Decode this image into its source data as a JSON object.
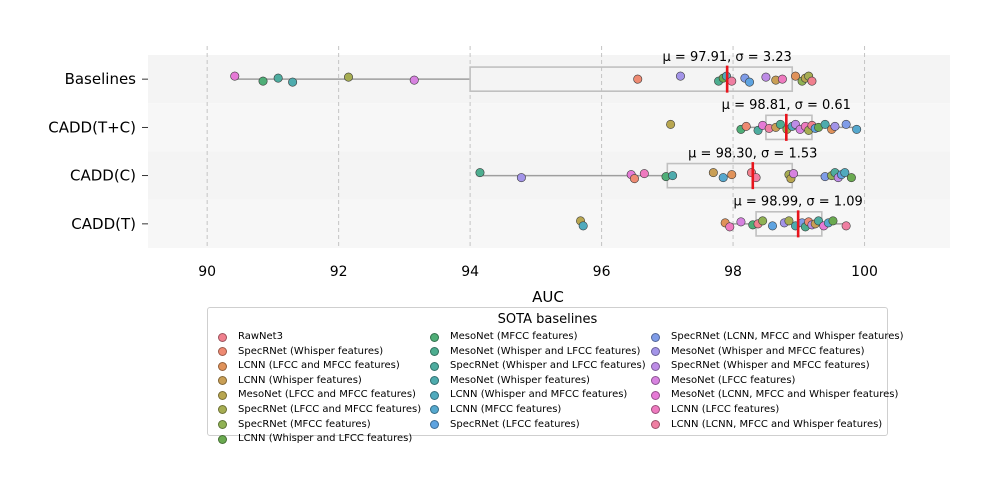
{
  "chart_data": {
    "type": "box-strip",
    "orientation": "horizontal",
    "xlabel": "AUC",
    "xlim": [
      89.1,
      101.3
    ],
    "xticks": [
      90,
      92,
      94,
      96,
      98,
      100
    ],
    "grid_x": true,
    "categories": [
      "Baselines",
      "CADD(T+C)",
      "CADD(C)",
      "CADD(T)"
    ],
    "annotations": [
      "μ = 97.91, σ = 3.23",
      "μ = 98.81, σ = 0.61",
      "μ = 98.30, σ = 1.53",
      "μ = 98.99, σ = 1.09"
    ],
    "means": [
      97.91,
      98.81,
      98.3,
      98.99
    ],
    "boxes": [
      {
        "min": 90.4,
        "q1": 94.0,
        "median": 97.91,
        "q3": 98.9,
        "max": 99.2
      },
      {
        "min": 98.1,
        "q1": 98.5,
        "median": 98.81,
        "q3": 99.2,
        "max": 99.9
      },
      {
        "min": 94.1,
        "q1": 97.0,
        "median": 98.3,
        "q3": 98.9,
        "max": 99.8
      },
      {
        "min": 97.85,
        "q1": 98.35,
        "median": 98.99,
        "q3": 99.35,
        "max": 99.75
      }
    ],
    "legend_title": "SOTA baselines",
    "legend": [
      "RawNet3",
      "SpecRNet (Whisper features)",
      "LCNN (LFCC and MFCC features)",
      "LCNN (Whisper features)",
      "MesoNet (LFCC and MFCC features)",
      "SpecRNet (LFCC and MFCC features)",
      "SpecRNet (MFCC features)",
      "LCNN (Whisper and LFCC features)",
      "MesoNet (MFCC features)",
      "MesoNet (Whisper and LFCC features)",
      "SpecRNet (Whisper and LFCC features)",
      "MesoNet (Whisper features)",
      "LCNN (Whisper and MFCC features)",
      "LCNN (MFCC features)",
      "SpecRNet (LFCC features)",
      "SpecRNet (LCNN, MFCC and Whisper features)",
      "MesoNet (Whisper and MFCC features)",
      "SpecRNet (Whisper and MFCC features)",
      "MesoNet (LFCC features)",
      "MesoNet (LCNN, MFCC and Whisper features)",
      "LCNN (LFCC features)",
      "LCNN (LCNN, MFCC and Whisper features)"
    ],
    "legend_colors": [
      "#f0808e",
      "#ee8a72",
      "#e0925a",
      "#c99f55",
      "#b8a650",
      "#a6ad52",
      "#90b254",
      "#6aaa50",
      "#4fae77",
      "#4dad8f",
      "#4dac9f",
      "#4eabad",
      "#50aabd",
      "#55a8ce",
      "#5ea3e0",
      "#7f9ce8",
      "#a394e8",
      "#bd8ce6",
      "#d782e0",
      "#e67ad6",
      "#ee7abf",
      "#ef7fa2"
    ],
    "points": [
      [
        {
          "x": 90.42,
          "s": 19
        },
        {
          "x": 90.85,
          "s": 8
        },
        {
          "x": 91.08,
          "s": 10
        },
        {
          "x": 91.3,
          "s": 11
        },
        {
          "x": 92.15,
          "s": 5
        },
        {
          "x": 93.15,
          "s": 18
        },
        {
          "x": 96.55,
          "s": 1
        },
        {
          "x": 97.2,
          "s": 16
        },
        {
          "x": 97.78,
          "s": 9
        },
        {
          "x": 97.85,
          "s": 7
        },
        {
          "x": 97.9,
          "s": 12
        },
        {
          "x": 97.98,
          "s": 21
        },
        {
          "x": 98.18,
          "s": 15
        },
        {
          "x": 98.25,
          "s": 14
        },
        {
          "x": 98.5,
          "s": 17
        },
        {
          "x": 98.65,
          "s": 3
        },
        {
          "x": 98.75,
          "s": 20
        },
        {
          "x": 98.95,
          "s": 2
        },
        {
          "x": 99.05,
          "s": 6
        },
        {
          "x": 99.1,
          "s": 4
        },
        {
          "x": 99.15,
          "s": 5
        },
        {
          "x": 99.2,
          "s": 0
        }
      ],
      [
        {
          "x": 97.05,
          "s": 4
        },
        {
          "x": 98.12,
          "s": 8
        },
        {
          "x": 98.2,
          "s": 1
        },
        {
          "x": 98.38,
          "s": 10
        },
        {
          "x": 98.45,
          "s": 19
        },
        {
          "x": 98.55,
          "s": 21
        },
        {
          "x": 98.65,
          "s": 3
        },
        {
          "x": 98.72,
          "s": 9
        },
        {
          "x": 98.82,
          "s": 6
        },
        {
          "x": 98.9,
          "s": 12
        },
        {
          "x": 98.95,
          "s": 17
        },
        {
          "x": 99.02,
          "s": 18
        },
        {
          "x": 99.1,
          "s": 20
        },
        {
          "x": 99.15,
          "s": 5
        },
        {
          "x": 99.2,
          "s": 0
        },
        {
          "x": 99.25,
          "s": 14
        },
        {
          "x": 99.3,
          "s": 7
        },
        {
          "x": 99.4,
          "s": 11
        },
        {
          "x": 99.5,
          "s": 2
        },
        {
          "x": 99.55,
          "s": 16
        },
        {
          "x": 99.72,
          "s": 15
        },
        {
          "x": 99.88,
          "s": 13
        }
      ],
      [
        {
          "x": 94.15,
          "s": 9
        },
        {
          "x": 94.78,
          "s": 16
        },
        {
          "x": 96.45,
          "s": 19
        },
        {
          "x": 96.5,
          "s": 1
        },
        {
          "x": 96.65,
          "s": 20
        },
        {
          "x": 96.98,
          "s": 8
        },
        {
          "x": 97.08,
          "s": 11
        },
        {
          "x": 97.7,
          "s": 3
        },
        {
          "x": 97.85,
          "s": 13
        },
        {
          "x": 97.98,
          "s": 2
        },
        {
          "x": 98.28,
          "s": 0
        },
        {
          "x": 98.35,
          "s": 21
        },
        {
          "x": 98.85,
          "s": 5
        },
        {
          "x": 98.88,
          "s": 4
        },
        {
          "x": 98.92,
          "s": 18
        },
        {
          "x": 99.4,
          "s": 15
        },
        {
          "x": 99.5,
          "s": 6
        },
        {
          "x": 99.55,
          "s": 10
        },
        {
          "x": 99.6,
          "s": 17
        },
        {
          "x": 99.65,
          "s": 14
        },
        {
          "x": 99.7,
          "s": 12
        },
        {
          "x": 99.8,
          "s": 7
        }
      ],
      [
        {
          "x": 95.68,
          "s": 4
        },
        {
          "x": 95.72,
          "s": 12
        },
        {
          "x": 97.88,
          "s": 2
        },
        {
          "x": 97.95,
          "s": 20
        },
        {
          "x": 98.12,
          "s": 18
        },
        {
          "x": 98.3,
          "s": 8
        },
        {
          "x": 98.38,
          "s": 0
        },
        {
          "x": 98.45,
          "s": 6
        },
        {
          "x": 98.6,
          "s": 14
        },
        {
          "x": 98.78,
          "s": 16
        },
        {
          "x": 98.85,
          "s": 5
        },
        {
          "x": 98.95,
          "s": 11
        },
        {
          "x": 99.05,
          "s": 15
        },
        {
          "x": 99.1,
          "s": 9
        },
        {
          "x": 99.15,
          "s": 1
        },
        {
          "x": 99.2,
          "s": 17
        },
        {
          "x": 99.25,
          "s": 3
        },
        {
          "x": 99.3,
          "s": 10
        },
        {
          "x": 99.38,
          "s": 19
        },
        {
          "x": 99.45,
          "s": 13
        },
        {
          "x": 99.52,
          "s": 7
        },
        {
          "x": 99.72,
          "s": 21
        }
      ]
    ]
  }
}
